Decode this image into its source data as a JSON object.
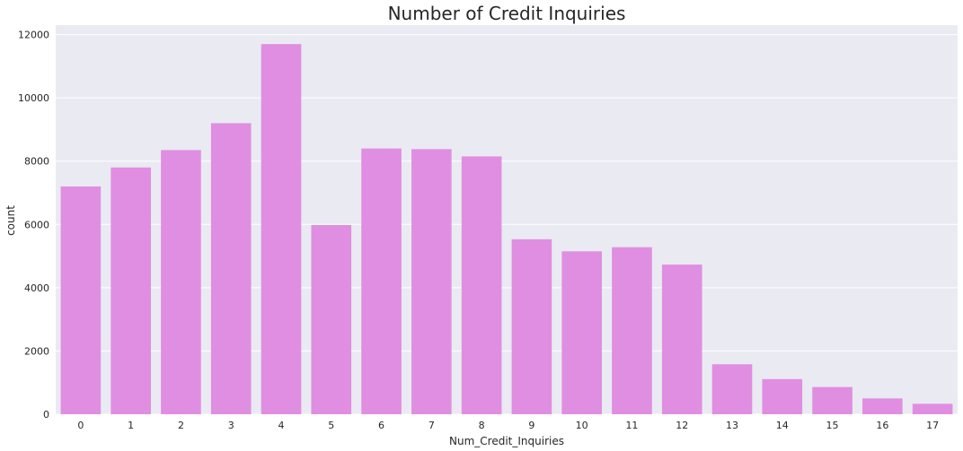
{
  "chart_data": {
    "type": "bar",
    "title": "Number of Credit Inquiries",
    "xlabel": "Num_Credit_Inquiries",
    "ylabel": "count",
    "categories": [
      "0",
      "1",
      "2",
      "3",
      "4",
      "5",
      "6",
      "7",
      "8",
      "9",
      "10",
      "11",
      "12",
      "13",
      "14",
      "15",
      "16",
      "17"
    ],
    "values": [
      7200,
      7800,
      8350,
      9200,
      11700,
      5980,
      8400,
      8380,
      8150,
      5530,
      5150,
      5280,
      4730,
      1580,
      1110,
      860,
      500,
      330
    ],
    "ylim": [
      0,
      12300
    ],
    "yticks": [
      0,
      2000,
      4000,
      6000,
      8000,
      10000,
      12000
    ],
    "grid": true,
    "legend": "none",
    "colors": {
      "bar": "#e08ee1",
      "plot_background": "#eaeaf2",
      "grid": "#ffffff",
      "text": "#262626"
    }
  }
}
